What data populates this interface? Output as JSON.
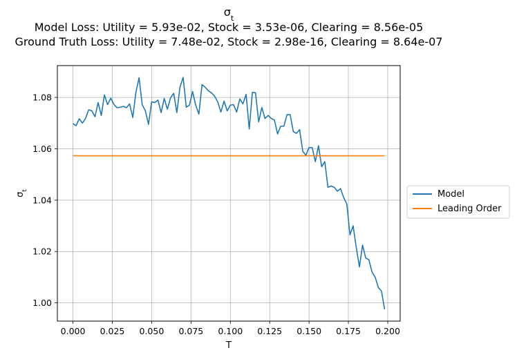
{
  "chart_data": {
    "type": "line",
    "title": "σt",
    "title_symbol": "σ",
    "title_subscript": "t",
    "subtitle_lines": [
      "Model Loss: Utility = 5.93e-02, Stock = 3.53e-06, Clearing = 8.56e-05",
      "Ground Truth Loss: Utility = 7.48e-02, Stock = 2.98e-16, Clearing = 8.64e-07"
    ],
    "xlabel": "T",
    "ylabel": "σt",
    "ylabel_symbol": "σ",
    "ylabel_subscript": "t",
    "xlim": [
      -0.0099,
      0.2079
    ],
    "ylim": [
      0.9929,
      1.0924
    ],
    "xticks": [
      0.0,
      0.025,
      0.05,
      0.075,
      0.1,
      0.125,
      0.15,
      0.175,
      0.2
    ],
    "xtick_labels": [
      "0.000",
      "0.025",
      "0.050",
      "0.075",
      "0.100",
      "0.125",
      "0.150",
      "0.175",
      "0.200"
    ],
    "yticks": [
      1.0,
      1.02,
      1.04,
      1.06,
      1.08
    ],
    "ytick_labels": [
      "1.00",
      "1.02",
      "1.04",
      "1.06",
      "1.08"
    ],
    "grid": true,
    "legend_position": "outside-right",
    "series": [
      {
        "name": "Model",
        "color": "#1f77b4",
        "x": [
          0.0,
          0.002,
          0.004,
          0.006,
          0.008,
          0.01,
          0.012,
          0.014,
          0.016,
          0.018,
          0.02,
          0.022,
          0.024,
          0.026,
          0.028,
          0.03,
          0.032,
          0.034,
          0.036,
          0.038,
          0.04,
          0.042,
          0.044,
          0.046,
          0.048,
          0.05,
          0.052,
          0.054,
          0.056,
          0.058,
          0.06,
          0.062,
          0.064,
          0.066,
          0.068,
          0.07,
          0.072,
          0.074,
          0.076,
          0.078,
          0.08,
          0.082,
          0.084,
          0.086,
          0.088,
          0.09,
          0.092,
          0.094,
          0.096,
          0.098,
          0.1,
          0.102,
          0.104,
          0.106,
          0.108,
          0.11,
          0.112,
          0.114,
          0.116,
          0.118,
          0.12,
          0.122,
          0.124,
          0.126,
          0.128,
          0.13,
          0.132,
          0.134,
          0.136,
          0.138,
          0.14,
          0.142,
          0.144,
          0.146,
          0.148,
          0.15,
          0.152,
          0.154,
          0.156,
          0.158,
          0.16,
          0.162,
          0.164,
          0.166,
          0.168,
          0.17,
          0.172,
          0.174,
          0.176,
          0.178,
          0.18,
          0.182,
          0.184,
          0.186,
          0.188,
          0.19,
          0.192,
          0.194,
          0.196,
          0.198
        ],
        "y": [
          1.0698,
          1.069,
          1.0717,
          1.07,
          1.0718,
          1.0752,
          1.0748,
          1.0725,
          1.078,
          1.073,
          1.081,
          1.0772,
          1.0797,
          1.0773,
          1.076,
          1.0762,
          1.0765,
          1.076,
          1.0775,
          1.0722,
          1.082,
          1.0877,
          1.0772,
          1.0748,
          1.0695,
          1.0783,
          1.078,
          1.079,
          1.0741,
          1.0796,
          1.0754,
          1.0798,
          1.0816,
          1.0741,
          1.084,
          1.0878,
          1.0762,
          1.077,
          1.0823,
          1.077,
          1.0735,
          1.085,
          1.084,
          1.0826,
          1.0818,
          1.0805,
          1.0782,
          1.0743,
          1.0786,
          1.0748,
          1.077,
          1.0772,
          1.0743,
          1.0794,
          1.0775,
          1.0812,
          1.0677,
          1.082,
          1.0818,
          1.0705,
          1.0761,
          1.0718,
          1.073,
          1.0718,
          1.0712,
          1.0658,
          1.0688,
          1.0688,
          1.0733,
          1.0733,
          1.0667,
          1.066,
          1.0675,
          1.059,
          1.0575,
          1.0605,
          1.0605,
          1.055,
          1.0612,
          1.053,
          1.055,
          1.045,
          1.0455,
          1.045,
          1.0435,
          1.0445,
          1.041,
          1.0385,
          1.0265,
          1.03,
          1.0215,
          1.014,
          1.0225,
          1.0175,
          1.0168,
          1.012,
          1.01,
          1.006,
          1.0046,
          0.9975
        ]
      },
      {
        "name": "Leading Order",
        "color": "#ff7f0e",
        "x": [
          0.0,
          0.198
        ],
        "y": [
          1.0573,
          1.0573
        ]
      }
    ]
  }
}
